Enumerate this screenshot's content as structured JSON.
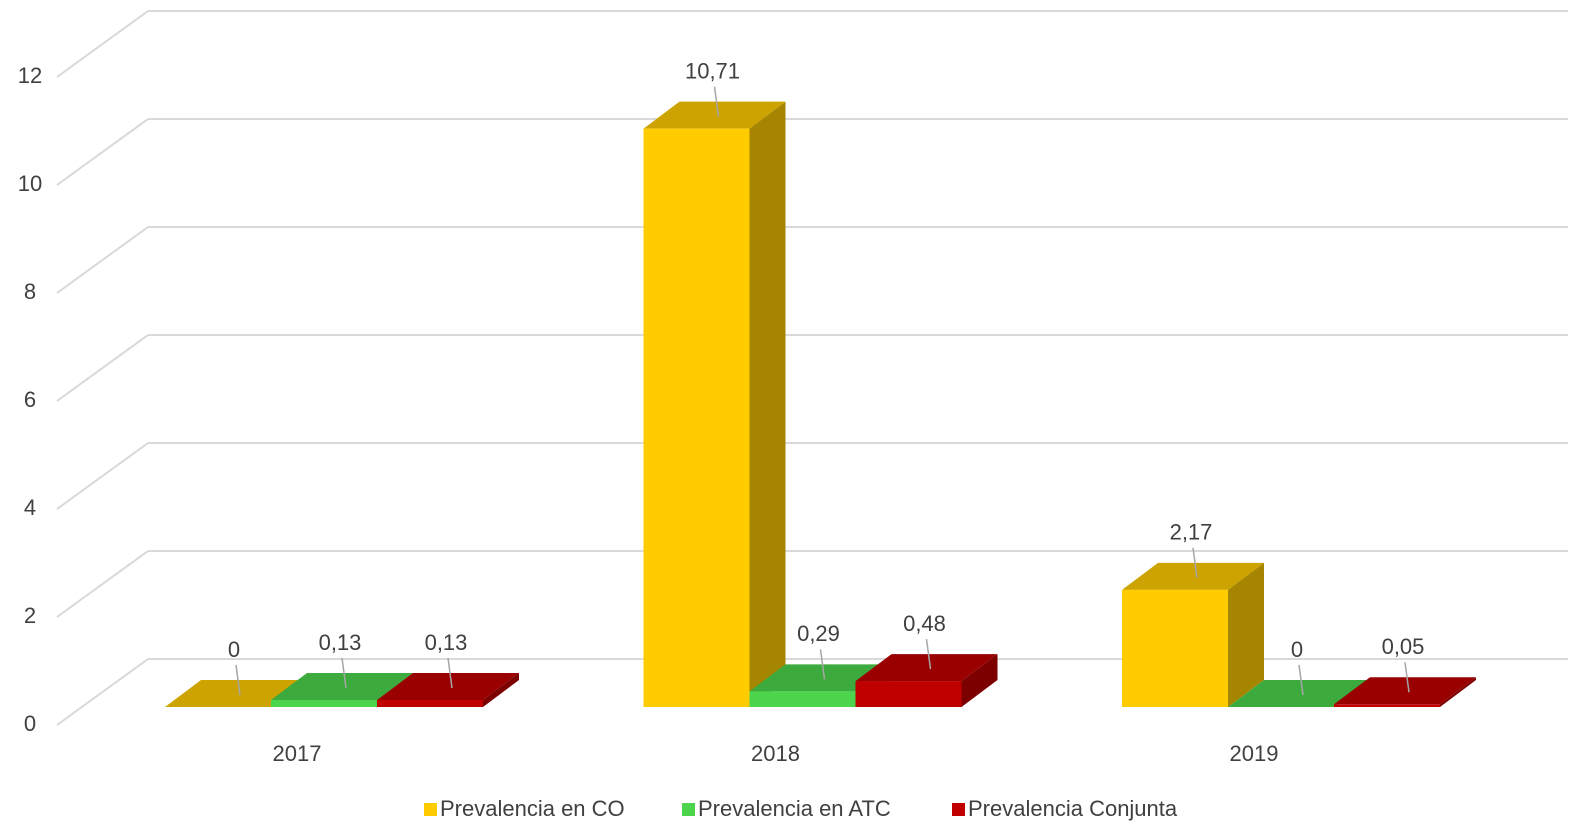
{
  "chart_data": {
    "type": "bar3d",
    "categories": [
      "2017",
      "2018",
      "2019"
    ],
    "series": [
      {
        "name": "Prevalencia en CO",
        "color": "#ffcc00",
        "values": [
          0,
          10.71,
          2.17
        ],
        "value_labels": [
          "0",
          "10,71",
          "2,17"
        ]
      },
      {
        "name": "Prevalencia en ATC",
        "color": "#4cd44c",
        "values": [
          0.13,
          0.29,
          0
        ],
        "value_labels": [
          "0,13",
          "0,29",
          "0"
        ]
      },
      {
        "name": "Prevalencia Conjunta",
        "color": "#c00000",
        "values": [
          0.13,
          0.48,
          0.05
        ],
        "value_labels": [
          "0,13",
          "0,48",
          "0,05"
        ]
      }
    ],
    "ylim": [
      0,
      12
    ],
    "yticks": [
      0,
      2,
      4,
      6,
      8,
      10,
      12
    ],
    "grid": true,
    "legend": "bottom"
  }
}
